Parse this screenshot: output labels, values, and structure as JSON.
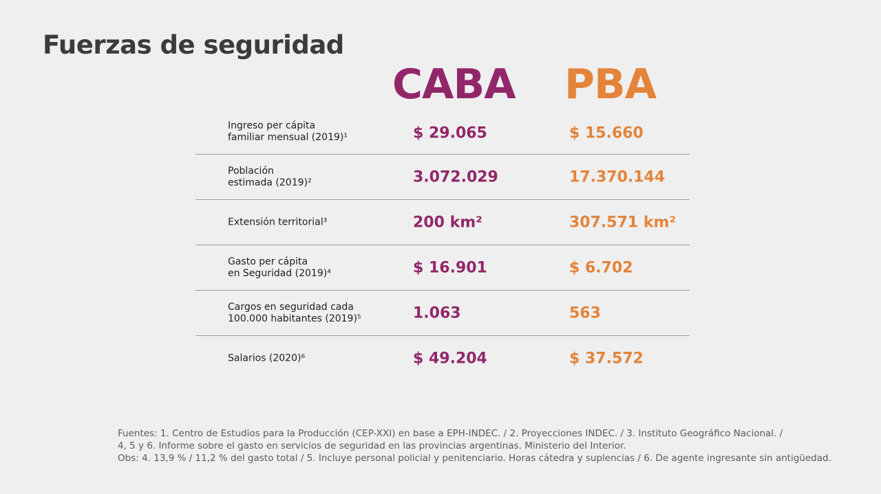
{
  "title": "Fuerzas de seguridad",
  "columns": {
    "caba": "CABA",
    "pba": "PBA"
  },
  "colors": {
    "caba": "#912769",
    "pba": "#e3843a",
    "title": "#3b3b3b"
  },
  "rows": [
    {
      "label": "Ingreso per cápita\nfamiliar mensual (2019)¹",
      "caba": "$ 29.065",
      "pba": "$ 15.660"
    },
    {
      "label": "Población\nestimada (2019)²",
      "caba": "3.072.029",
      "pba": "17.370.144"
    },
    {
      "label": "Extensión territorial³",
      "caba": "200 km²",
      "pba": "307.571 km²"
    },
    {
      "label": "Gasto per cápita\nen Seguridad (2019)⁴",
      "caba": "$ 16.901",
      "pba": "$ 6.702"
    },
    {
      "label": "Cargos en seguridad cada\n100.000 habitantes (2019)⁵",
      "caba": "1.063",
      "pba": "563"
    },
    {
      "label": "Salarios (2020)⁶",
      "caba": "$ 49.204",
      "pba": "$ 37.572"
    }
  ],
  "footer": {
    "line1": "Fuentes: 1. Centro de Estudios para la Producción (CEP-XXI) en base a EPH-INDEC. / 2. Proyecciones INDEC. / 3. Instituto Geográfico Nacional. /",
    "line2": "4, 5 y 6. Informe sobre el gasto en servicios de seguridad en las provincias argentinas. Ministerio del Interior.",
    "line3": "Obs: 4. 13,9 % / 11,2 % del gasto total / 5. Incluye personal policial y penitenciario. Horas cátedra y suplencias / 6. De agente ingresante sin antigüedad."
  }
}
